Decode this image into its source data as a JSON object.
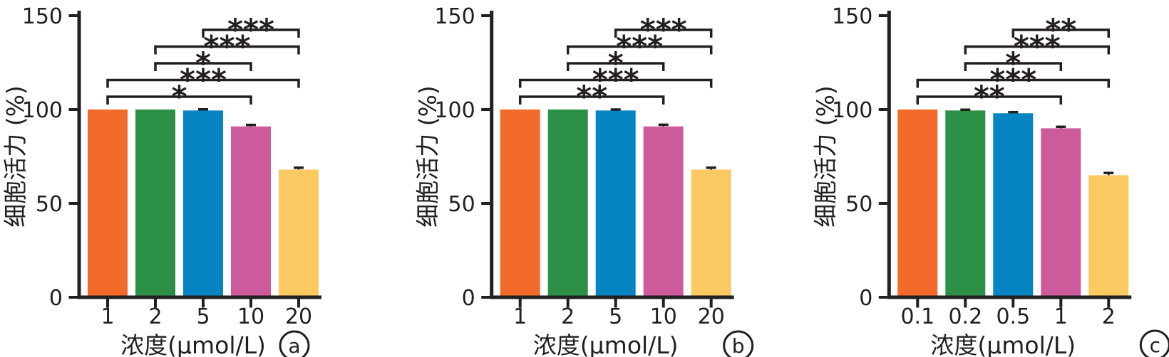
{
  "figure": {
    "ylabel": "细胞活力 (%)",
    "xlabel": "浓度(μmol/L)",
    "ink_color": "#231f20",
    "background_color": "#ffffff",
    "bar_colors": [
      "#f26b2a",
      "#2b9046",
      "#0784c2",
      "#cd5a9b",
      "#fbc961"
    ],
    "error_bar_color": "#231f20"
  },
  "chart_data": [
    {
      "type": "bar",
      "panel_label": "a",
      "xlabel": "浓度(μmol/L)",
      "ylabel": "细胞活力 (%)",
      "categories": [
        "1",
        "2",
        "5",
        "10",
        "20"
      ],
      "values": [
        100,
        100,
        99.5,
        91,
        68
      ],
      "errors": [
        0,
        0,
        0.6,
        0.8,
        1.0
      ],
      "ylim": [
        0,
        150
      ],
      "yticks": [
        0,
        50,
        100,
        150
      ],
      "grid": false,
      "legend": false,
      "significance_brackets": [
        {
          "from": "1",
          "to": "10",
          "label": "*"
        },
        {
          "from": "1",
          "to": "20",
          "label": "***"
        },
        {
          "from": "2",
          "to": "10",
          "label": "*"
        },
        {
          "from": "2",
          "to": "20",
          "label": "***"
        },
        {
          "from": "5",
          "to": "20",
          "label": "***"
        }
      ]
    },
    {
      "type": "bar",
      "panel_label": "b",
      "xlabel": "浓度(μmol/L)",
      "ylabel": "细胞活力 (%)",
      "categories": [
        "1",
        "2",
        "5",
        "10",
        "20"
      ],
      "values": [
        100,
        100,
        99.5,
        91,
        68
      ],
      "errors": [
        0,
        0,
        0.5,
        0.9,
        1.0
      ],
      "ylim": [
        0,
        150
      ],
      "yticks": [
        0,
        50,
        100,
        150
      ],
      "grid": false,
      "legend": false,
      "significance_brackets": [
        {
          "from": "1",
          "to": "10",
          "label": "**"
        },
        {
          "from": "1",
          "to": "20",
          "label": "***"
        },
        {
          "from": "2",
          "to": "10",
          "label": "*"
        },
        {
          "from": "2",
          "to": "20",
          "label": "***"
        },
        {
          "from": "5",
          "to": "20",
          "label": "***"
        }
      ]
    },
    {
      "type": "bar",
      "panel_label": "c",
      "xlabel": "浓度(μmol/L)",
      "ylabel": "细胞活力 (%)",
      "categories": [
        "0.1",
        "0.2",
        "0.5",
        "1",
        "2"
      ],
      "values": [
        100,
        99.5,
        98,
        90,
        65
      ],
      "errors": [
        0,
        0.4,
        0.6,
        0.8,
        1.2
      ],
      "ylim": [
        0,
        150
      ],
      "yticks": [
        0,
        50,
        100,
        150
      ],
      "grid": false,
      "legend": false,
      "significance_brackets": [
        {
          "from": "0.1",
          "to": "1",
          "label": "**"
        },
        {
          "from": "0.1",
          "to": "2",
          "label": "***"
        },
        {
          "from": "0.2",
          "to": "1",
          "label": "*"
        },
        {
          "from": "0.2",
          "to": "2",
          "label": "***"
        },
        {
          "from": "0.5",
          "to": "2",
          "label": "**"
        }
      ]
    }
  ]
}
